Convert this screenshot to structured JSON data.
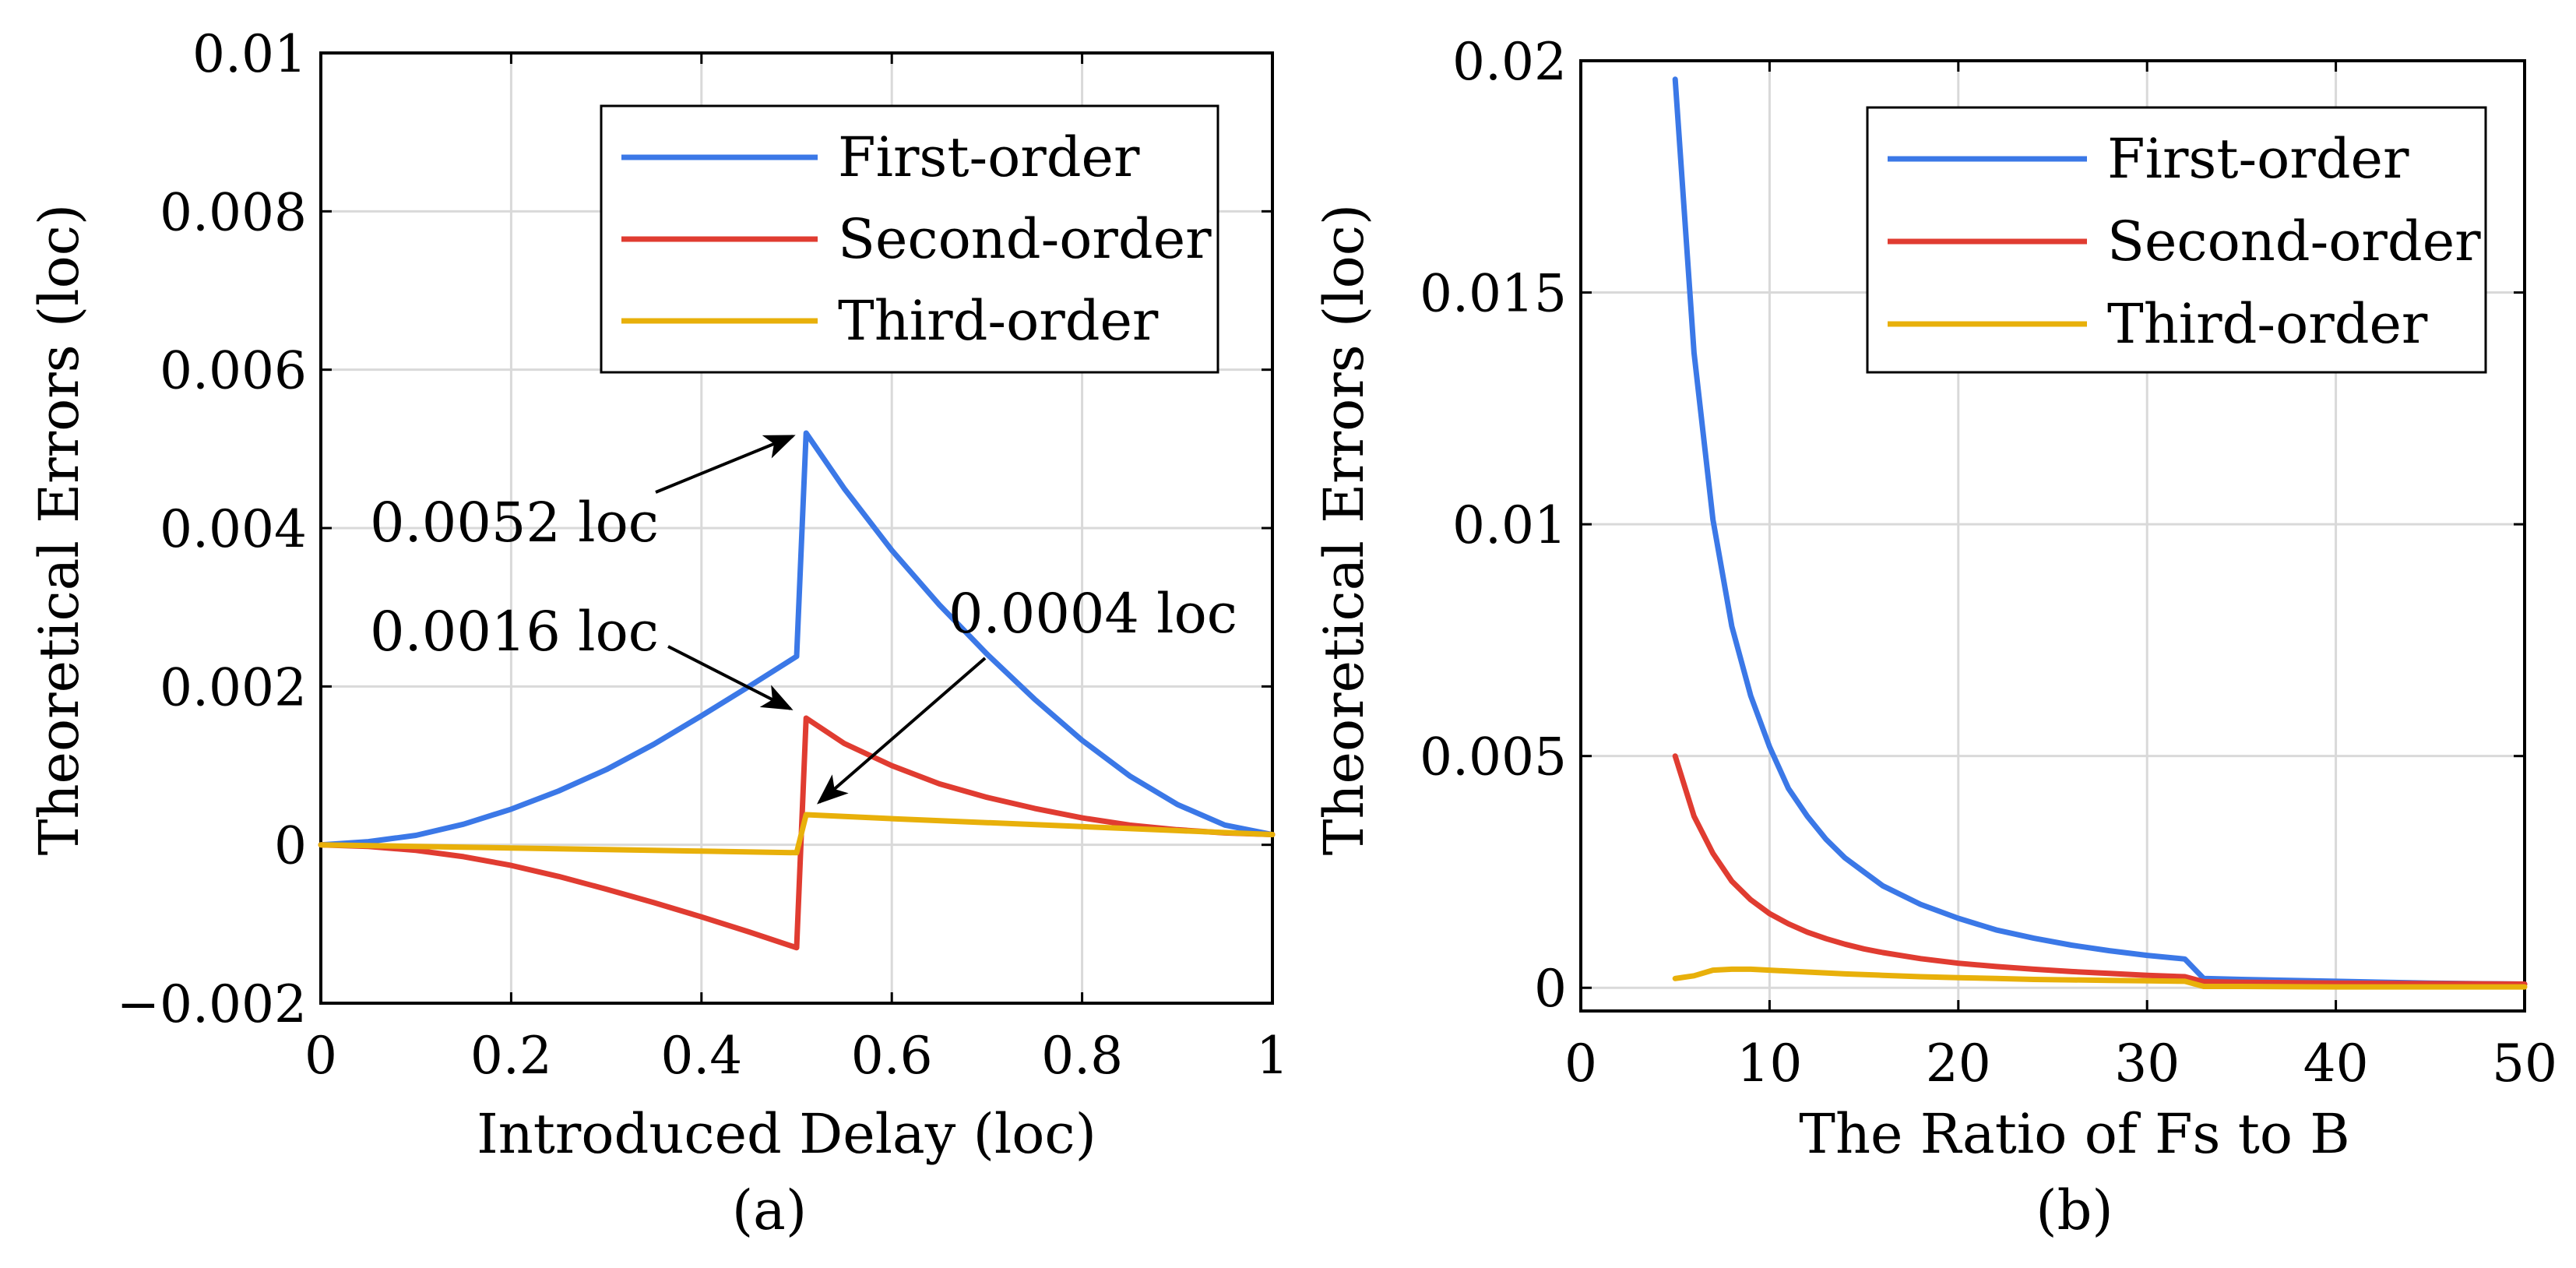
{
  "chart_data": [
    {
      "id": "a",
      "type": "line",
      "caption": "(a)",
      "xlabel": "Introduced Delay (loc)",
      "ylabel": "Theoretical Errors (loc)",
      "xlim": [
        0,
        1
      ],
      "ylim": [
        -0.002,
        0.01
      ],
      "xticks": [
        0,
        0.2,
        0.4,
        0.6,
        0.8,
        1
      ],
      "xtick_labels": [
        "0",
        "0.2",
        "0.4",
        "0.6",
        "0.8",
        "1"
      ],
      "yticks": [
        -0.002,
        0,
        0.002,
        0.004,
        0.006,
        0.008,
        0.01
      ],
      "ytick_labels": [
        "−0.002",
        "0",
        "0.002",
        "0.004",
        "0.006",
        "0.008",
        "0.01"
      ],
      "grid": true,
      "legend_position": "top-right",
      "series": [
        {
          "name": "First-order",
          "color": "#3b78e7",
          "x": [
            0,
            0.05,
            0.1,
            0.15,
            0.2,
            0.25,
            0.3,
            0.35,
            0.4,
            0.45,
            0.5,
            0.51,
            0.55,
            0.6,
            0.65,
            0.7,
            0.75,
            0.8,
            0.85,
            0.9,
            0.95,
            1.0
          ],
          "y": [
            0,
            4e-05,
            0.00012,
            0.00026,
            0.00045,
            0.00068,
            0.00095,
            0.00127,
            0.00163,
            0.002,
            0.00238,
            0.0052,
            0.0045,
            0.00372,
            0.00303,
            0.00241,
            0.00184,
            0.00132,
            0.00087,
            0.00051,
            0.00025,
            0.00013
          ]
        },
        {
          "name": "Second-order",
          "color": "#e03c31",
          "x": [
            0,
            0.05,
            0.1,
            0.15,
            0.2,
            0.25,
            0.3,
            0.35,
            0.4,
            0.45,
            0.5,
            0.51,
            0.55,
            0.6,
            0.65,
            0.7,
            0.75,
            0.8,
            0.85,
            0.9,
            0.95,
            1.0
          ],
          "y": [
            0,
            -2e-05,
            -7e-05,
            -0.00015,
            -0.00026,
            -0.0004,
            -0.00056,
            -0.00073,
            -0.00091,
            -0.0011,
            -0.0013,
            0.0016,
            0.00128,
            0.001,
            0.00077,
            0.0006,
            0.00046,
            0.00034,
            0.00025,
            0.00019,
            0.00015,
            0.00013
          ]
        },
        {
          "name": "Third-order",
          "color": "#e8b00a",
          "x": [
            0,
            0.1,
            0.2,
            0.3,
            0.4,
            0.5,
            0.51,
            0.6,
            0.7,
            0.8,
            0.9,
            1.0
          ],
          "y": [
            0,
            -2e-05,
            -4e-05,
            -6e-05,
            -8e-05,
            -0.0001,
            0.00038,
            0.00033,
            0.00028,
            0.00023,
            0.00018,
            0.00013
          ]
        }
      ],
      "annotations": [
        {
          "text": "0.0052 loc",
          "arrow_to": [
            0.51,
            0.0052
          ]
        },
        {
          "text": "0.0016 loc",
          "arrow_to": [
            0.51,
            0.0016
          ]
        },
        {
          "text": "0.0004 loc",
          "arrow_to": [
            0.52,
            0.0004
          ]
        }
      ]
    },
    {
      "id": "b",
      "type": "line",
      "caption": "(b)",
      "xlabel": "The Ratio of Fs to B",
      "ylabel": "Theoretical Errors (loc)",
      "xlim": [
        0,
        50
      ],
      "ylim": [
        -0.0005,
        0.02
      ],
      "xticks": [
        0,
        10,
        20,
        30,
        40,
        50
      ],
      "xtick_labels": [
        "0",
        "10",
        "20",
        "30",
        "40",
        "50"
      ],
      "yticks": [
        0,
        0.005,
        0.01,
        0.015,
        0.02
      ],
      "ytick_labels": [
        "0",
        "0.005",
        "0.01",
        "0.015",
        "0.02"
      ],
      "grid": true,
      "legend_position": "top-right",
      "series": [
        {
          "name": "First-order",
          "color": "#3b78e7",
          "x": [
            5,
            6,
            7,
            8,
            9,
            10,
            11,
            12,
            13,
            14,
            15,
            16,
            18,
            20,
            22,
            24,
            26,
            28,
            30,
            32,
            33,
            35,
            40,
            45,
            50
          ],
          "y": [
            0.0196,
            0.0137,
            0.0101,
            0.0078,
            0.0063,
            0.0052,
            0.0043,
            0.0037,
            0.0032,
            0.0028,
            0.0025,
            0.0022,
            0.0018,
            0.0015,
            0.00125,
            0.00107,
            0.00092,
            0.0008,
            0.0007,
            0.00062,
            0.0002,
            0.00018,
            0.00014,
            0.0001,
            8e-05
          ]
        },
        {
          "name": "Second-order",
          "color": "#e03c31",
          "x": [
            5,
            6,
            7,
            8,
            9,
            10,
            11,
            12,
            13,
            14,
            15,
            16,
            18,
            20,
            22,
            24,
            26,
            28,
            30,
            32,
            33,
            35,
            40,
            45,
            50
          ],
          "y": [
            0.005,
            0.0037,
            0.0029,
            0.0023,
            0.0019,
            0.0016,
            0.00138,
            0.0012,
            0.00106,
            0.00094,
            0.00084,
            0.00076,
            0.00063,
            0.00053,
            0.00046,
            0.0004,
            0.00035,
            0.00031,
            0.00027,
            0.00024,
            0.00013,
            0.00012,
            0.0001,
            9e-05,
            8e-05
          ]
        },
        {
          "name": "Third-order",
          "color": "#e8b00a",
          "x": [
            5,
            6,
            7,
            8,
            9,
            10,
            12,
            14,
            16,
            18,
            20,
            22,
            24,
            26,
            28,
            30,
            32,
            33,
            35,
            40,
            45,
            50
          ],
          "y": [
            0.0002,
            0.00026,
            0.00038,
            0.0004,
            0.0004,
            0.00038,
            0.00034,
            0.0003,
            0.00027,
            0.00024,
            0.00022,
            0.0002,
            0.00018,
            0.00017,
            0.00016,
            0.00015,
            0.00014,
            3e-05,
            3e-05,
            2e-05,
            2e-05,
            2e-05
          ]
        }
      ]
    }
  ]
}
